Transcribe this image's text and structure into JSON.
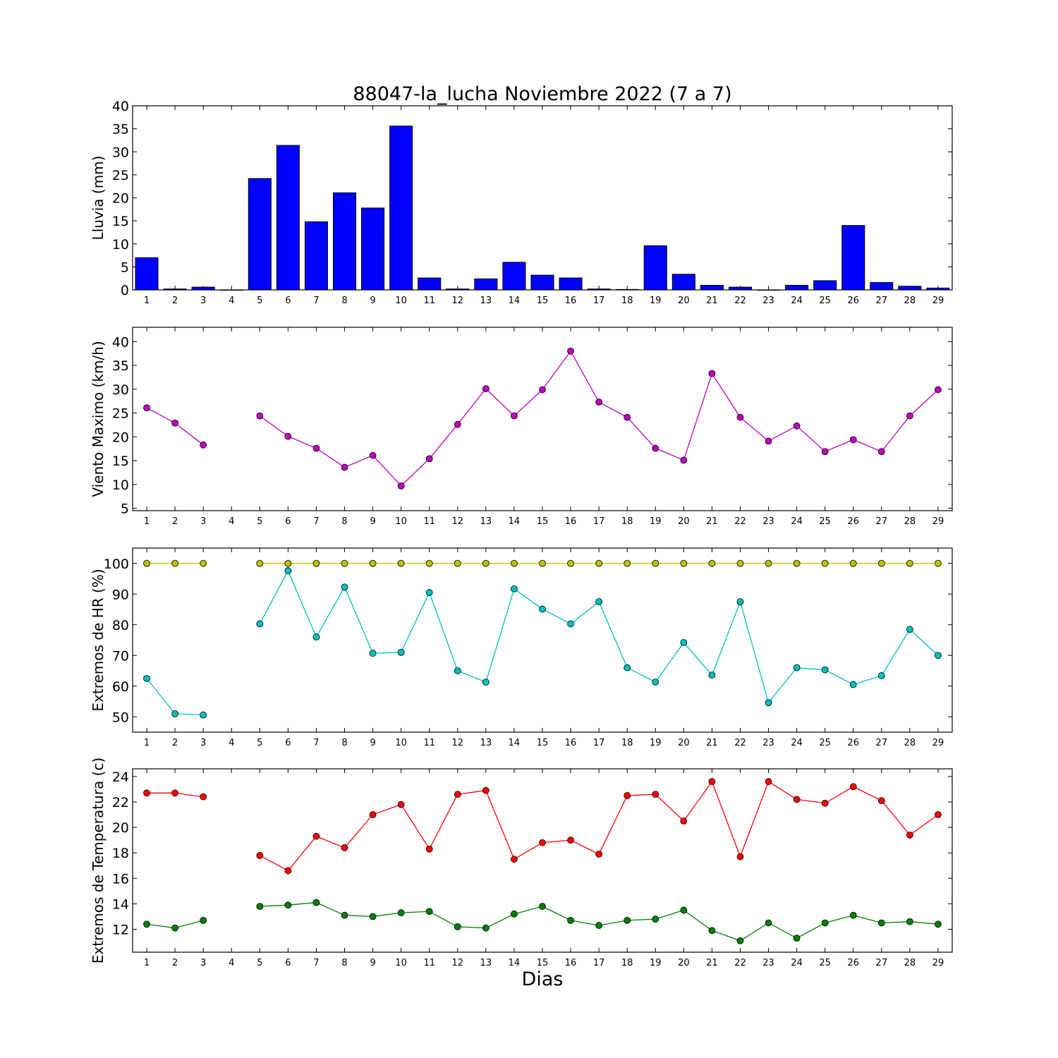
{
  "figure": {
    "title": "88047-la_lucha Noviembre 2022  (7 a 7)",
    "xlabel": "Dias"
  },
  "chart_data": [
    {
      "type": "bar",
      "ylabel": "Lluvia (mm)",
      "ylim": [
        0,
        40
      ],
      "yticks": [
        0,
        5,
        10,
        15,
        20,
        25,
        30,
        35,
        40
      ],
      "x": [
        1,
        2,
        3,
        4,
        5,
        6,
        7,
        8,
        9,
        10,
        11,
        12,
        13,
        14,
        15,
        16,
        17,
        18,
        19,
        20,
        21,
        22,
        23,
        24,
        25,
        26,
        27,
        28,
        29
      ],
      "values": [
        7.0,
        0.2,
        0.6,
        0,
        24.2,
        31.4,
        14.8,
        21.1,
        17.8,
        35.6,
        2.6,
        0.2,
        2.4,
        6.0,
        3.2,
        2.6,
        0.2,
        0.1,
        9.6,
        3.4,
        1.0,
        0.6,
        0,
        1.0,
        2.0,
        14.0,
        1.6,
        0.8,
        0.4
      ],
      "color": "#0000ff"
    },
    {
      "type": "line",
      "ylabel": "Viento Maximo (km/h)",
      "ylim": [
        4.5,
        43
      ],
      "yticks": [
        5,
        10,
        15,
        20,
        25,
        30,
        35,
        40
      ],
      "x": [
        1,
        2,
        3,
        4,
        5,
        6,
        7,
        8,
        9,
        10,
        11,
        12,
        13,
        14,
        15,
        16,
        17,
        18,
        19,
        20,
        21,
        22,
        23,
        24,
        25,
        26,
        27,
        28,
        29
      ],
      "series": [
        {
          "color": "#bf00bf",
          "values": [
            26.1,
            22.9,
            18.3,
            null,
            24.4,
            20.1,
            17.6,
            13.6,
            16.1,
            9.7,
            15.4,
            22.6,
            30.1,
            24.4,
            29.9,
            38.0,
            27.3,
            24.1,
            17.6,
            15.1,
            33.3,
            24.1,
            19.1,
            22.3,
            16.9,
            19.4,
            16.9,
            24.4,
            29.9
          ]
        }
      ]
    },
    {
      "type": "line",
      "ylabel": "Extremos de HR (%)",
      "ylim": [
        45,
        105
      ],
      "yticks": [
        50,
        60,
        70,
        80,
        90,
        100
      ],
      "x": [
        1,
        2,
        3,
        4,
        5,
        6,
        7,
        8,
        9,
        10,
        11,
        12,
        13,
        14,
        15,
        16,
        17,
        18,
        19,
        20,
        21,
        22,
        23,
        24,
        25,
        26,
        27,
        28,
        29
      ],
      "series": [
        {
          "color": "#bfbf00",
          "values": [
            100,
            100,
            100,
            null,
            100,
            100,
            100,
            100,
            100,
            100,
            100,
            100,
            100,
            100,
            100,
            100,
            100,
            100,
            100,
            100,
            100,
            100,
            100,
            100,
            100,
            100,
            100,
            100,
            100
          ]
        },
        {
          "color": "#00bfbf",
          "values": [
            62.5,
            51.0,
            50.6,
            null,
            80.3,
            97.6,
            76.0,
            92.3,
            70.7,
            71.0,
            90.5,
            65.0,
            61.3,
            91.7,
            85.1,
            80.3,
            87.5,
            66.0,
            61.3,
            74.2,
            63.6,
            87.5,
            54.6,
            66.0,
            65.3,
            60.5,
            63.4,
            78.5,
            70.0
          ]
        }
      ]
    },
    {
      "type": "line",
      "ylabel": "Extremos de Temperatura (c)",
      "ylim": [
        10.2,
        24.6
      ],
      "yticks": [
        12,
        14,
        16,
        18,
        20,
        22,
        24
      ],
      "x": [
        1,
        2,
        3,
        4,
        5,
        6,
        7,
        8,
        9,
        10,
        11,
        12,
        13,
        14,
        15,
        16,
        17,
        18,
        19,
        20,
        21,
        22,
        23,
        24,
        25,
        26,
        27,
        28,
        29
      ],
      "series": [
        {
          "color": "#ff0000",
          "values": [
            22.7,
            22.7,
            22.4,
            null,
            17.8,
            16.6,
            19.3,
            18.4,
            21.0,
            21.8,
            18.3,
            22.6,
            22.9,
            17.5,
            18.8,
            19.0,
            17.9,
            22.5,
            22.6,
            20.5,
            23.6,
            17.7,
            23.6,
            22.2,
            21.9,
            23.2,
            22.1,
            19.4,
            21.0
          ]
        },
        {
          "color": "#008000",
          "values": [
            12.4,
            12.1,
            12.7,
            null,
            13.8,
            13.9,
            14.1,
            13.1,
            13.0,
            13.3,
            13.4,
            12.2,
            12.1,
            13.2,
            13.8,
            12.7,
            12.3,
            12.7,
            12.8,
            13.5,
            11.9,
            11.1,
            12.5,
            11.3,
            12.5,
            13.1,
            12.5,
            12.6,
            12.4
          ]
        }
      ]
    }
  ]
}
